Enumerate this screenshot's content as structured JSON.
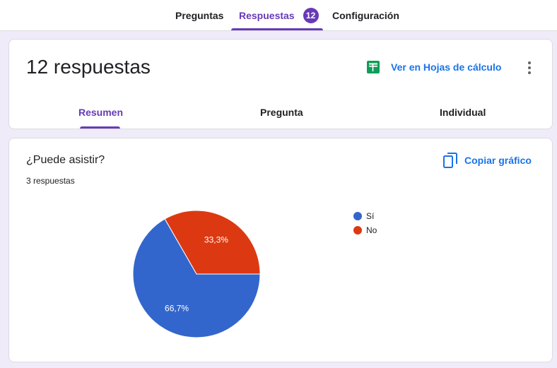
{
  "nav": {
    "tabs": [
      {
        "label": "Preguntas"
      },
      {
        "label": "Respuestas",
        "badge": "12"
      },
      {
        "label": "Configuración"
      }
    ],
    "active_tab": "Respuestas"
  },
  "summary_card": {
    "title": "12 respuestas",
    "sheets_link": "Ver en Hojas de cálculo",
    "sub_tabs": [
      {
        "label": "Resumen"
      },
      {
        "label": "Pregunta"
      },
      {
        "label": "Individual"
      }
    ],
    "active_sub_tab": "Resumen"
  },
  "question_card": {
    "title": "¿Puede asistir?",
    "response_count": "3 respuestas",
    "copy_label": "Copiar gráfico"
  },
  "chart_data": {
    "type": "pie",
    "categories": [
      "Sí",
      "No"
    ],
    "values": [
      66.7,
      33.3
    ],
    "labels": [
      "66,7%",
      "33,3%"
    ],
    "colors": [
      "#3366cc",
      "#dc3912"
    ],
    "legend_position": "right"
  },
  "colors": {
    "accent": "#673ab7",
    "link": "#1a73e8",
    "background": "#f0ebf8",
    "sheets_green": "#0f9d58"
  }
}
